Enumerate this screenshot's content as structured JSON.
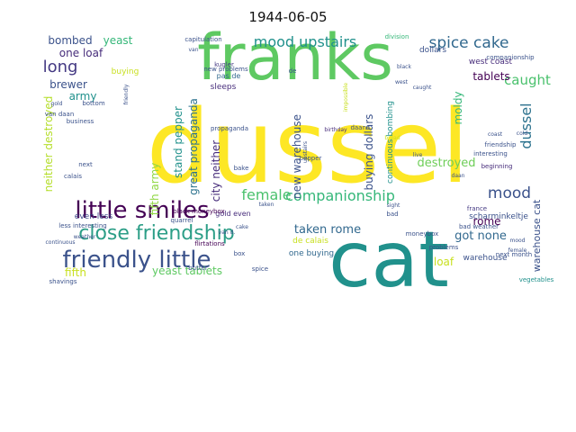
{
  "chart_data": {
    "type": "wordcloud",
    "title": "1944-06-05",
    "background": "#ffffff",
    "words": [
      {
        "text": "dussel",
        "color": "#fde725"
      },
      {
        "text": "cat",
        "color": "#21918c"
      },
      {
        "text": "franks",
        "color": "#5ec962"
      },
      {
        "text": "little smiles",
        "color": "#440154"
      },
      {
        "text": "friendly little",
        "color": "#3b528b"
      },
      {
        "text": "close friendship",
        "color": "#2c9e87"
      },
      {
        "text": "companionship",
        "color": "#35b779"
      },
      {
        "text": "spice cake",
        "color": "#31688e"
      },
      {
        "text": "mood upstairs",
        "color": "#21918c"
      },
      {
        "text": "female",
        "color": "#4ac16d"
      },
      {
        "text": "mood",
        "color": "#3b528b"
      },
      {
        "text": "long",
        "color": "#443983"
      },
      {
        "text": "dussel",
        "color": "#2c728e"
      },
      {
        "text": "caught",
        "color": "#4ac16d"
      },
      {
        "text": "destroyed",
        "color": "#6ece58"
      },
      {
        "text": "taken rome",
        "color": "#31688e"
      },
      {
        "text": "got none",
        "color": "#31688e"
      },
      {
        "text": "yeast tablets",
        "color": "#5ec962"
      },
      {
        "text": "fifth army",
        "color": "#90d743"
      },
      {
        "text": "stand pepper",
        "color": "#21918c"
      },
      {
        "text": "great propaganda",
        "color": "#2c728e"
      },
      {
        "text": "city neither",
        "color": "#472d7b"
      },
      {
        "text": "neither destroyed",
        "color": "#b5de2b"
      },
      {
        "text": "new warehouse",
        "color": "#3b528b"
      },
      {
        "text": "buying dollars",
        "color": "#3b528b"
      },
      {
        "text": "moldy",
        "color": "#35b779"
      },
      {
        "text": "continuous bombing",
        "color": "#21918c"
      },
      {
        "text": "warehouse cat",
        "color": "#3b528b"
      },
      {
        "text": "tablets",
        "color": "#440154"
      },
      {
        "text": "rome",
        "color": "#440154"
      },
      {
        "text": "loaf",
        "color": "#c8e020"
      },
      {
        "text": "fifth",
        "color": "#c8e020"
      },
      {
        "text": "bombed",
        "color": "#3b528b"
      },
      {
        "text": "yeast",
        "color": "#35b779"
      },
      {
        "text": "one loaf",
        "color": "#472d7b"
      },
      {
        "text": "brewer",
        "color": "#3b528b"
      },
      {
        "text": "army",
        "color": "#21918c"
      },
      {
        "text": "buying",
        "color": "#c8e020"
      },
      {
        "text": "sleeps",
        "color": "#472d7b"
      },
      {
        "text": "kugler",
        "color": "#443983"
      },
      {
        "text": "pas de",
        "color": "#31688e"
      },
      {
        "text": "west coast",
        "color": "#472d7b"
      },
      {
        "text": "even less",
        "color": "#3e4989"
      },
      {
        "text": "gold even",
        "color": "#472d7b"
      },
      {
        "text": "one buying",
        "color": "#31688e"
      },
      {
        "text": "de calais",
        "color": "#c8e020"
      },
      {
        "text": "scharminkeltje",
        "color": "#3b528b"
      },
      {
        "text": "warehouse",
        "color": "#3b528b"
      },
      {
        "text": "black moneybox",
        "color": "#440154"
      },
      {
        "text": "flirtations",
        "color": "#440154"
      },
      {
        "text": "less interesting",
        "color": "#3b528b"
      },
      {
        "text": "capitulation",
        "color": "#3b528b"
      },
      {
        "text": "dollars",
        "color": "#3b528b"
      },
      {
        "text": "division",
        "color": "#35b779"
      },
      {
        "text": "companionship",
        "color": "#3b528b"
      },
      {
        "text": "new problems",
        "color": "#3b528b"
      },
      {
        "text": "propaganda",
        "color": "#3b528b"
      },
      {
        "text": "birthday",
        "color": "#472d7b"
      },
      {
        "text": "friendship",
        "color": "#3b528b"
      },
      {
        "text": "interesting",
        "color": "#3b528b"
      },
      {
        "text": "beginning",
        "color": "#472d7b"
      },
      {
        "text": "calais",
        "color": "#3b528b"
      },
      {
        "text": "business",
        "color": "#3b528b"
      },
      {
        "text": "van daan",
        "color": "#3b528b"
      },
      {
        "text": "bottom",
        "color": "#3b528b"
      },
      {
        "text": "friendly",
        "color": "#3b528b"
      },
      {
        "text": "next month",
        "color": "#3b528b"
      },
      {
        "text": "vegetables",
        "color": "#21918c"
      },
      {
        "text": "problems",
        "color": "#3b528b"
      },
      {
        "text": "moneybox",
        "color": "#3b528b"
      },
      {
        "text": "bad weather",
        "color": "#3b528b"
      },
      {
        "text": "france",
        "color": "#443983"
      },
      {
        "text": "quarrel",
        "color": "#3b528b"
      },
      {
        "text": "butter",
        "color": "#3b528b"
      },
      {
        "text": "shavings",
        "color": "#3b528b"
      },
      {
        "text": "spice",
        "color": "#3b528b"
      },
      {
        "text": "cake",
        "color": "#3b528b"
      },
      {
        "text": "van d.",
        "color": "#3b528b"
      },
      {
        "text": "taken",
        "color": "#3b528b"
      },
      {
        "text": "sight",
        "color": "#3b528b"
      },
      {
        "text": "bad",
        "color": "#3b528b"
      },
      {
        "text": "next",
        "color": "#3b528b"
      },
      {
        "text": "weather",
        "color": "#3b528b"
      },
      {
        "text": "continuous",
        "color": "#3b528b"
      },
      {
        "text": "mood",
        "color": "#3b528b"
      },
      {
        "text": "female",
        "color": "#3b528b"
      },
      {
        "text": "cold",
        "color": "#3b528b"
      },
      {
        "text": "live",
        "color": "#3b528b"
      },
      {
        "text": "gold",
        "color": "#3b528b"
      },
      {
        "text": "caught",
        "color": "#3b528b"
      },
      {
        "text": "west",
        "color": "#3b528b"
      },
      {
        "text": "black",
        "color": "#3b528b"
      },
      {
        "text": "coast",
        "color": "#3b528b"
      },
      {
        "text": "daan",
        "color": "#3b528b"
      },
      {
        "text": "daans",
        "color": "#3b528b"
      },
      {
        "text": "bread",
        "color": "#c8e020"
      },
      {
        "text": "upstairs",
        "color": "#3b528b"
      },
      {
        "text": "impossible",
        "color": "#c8e020"
      },
      {
        "text": "pepper",
        "color": "#3b528b"
      },
      {
        "text": "bake",
        "color": "#3b528b"
      },
      {
        "text": "box",
        "color": "#3b528b"
      },
      {
        "text": "de",
        "color": "#3b528b"
      },
      {
        "text": "van",
        "color": "#3b528b"
      }
    ]
  }
}
